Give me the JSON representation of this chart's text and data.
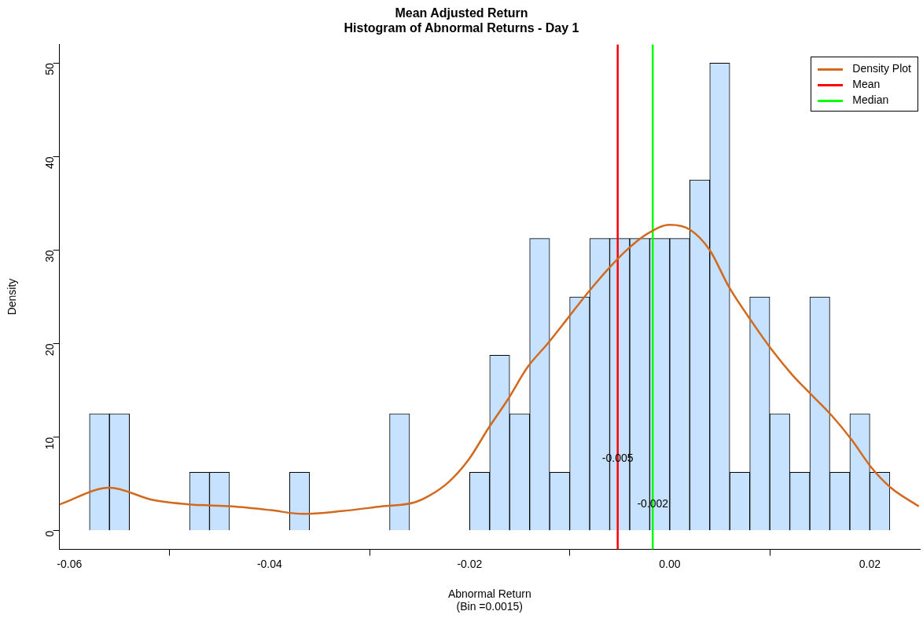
{
  "chart_data": {
    "type": "histogram",
    "title": "Mean Adjusted Return",
    "subtitle": "Histogram of Abnormal Returns - Day 1",
    "xlabel": "Abnormal Return\n(Bin =0.0015)",
    "ylabel": "Density",
    "bins": [
      -0.058,
      -0.056,
      -0.054,
      -0.052,
      -0.05,
      -0.048,
      -0.046,
      -0.044,
      -0.042,
      -0.04,
      -0.038,
      -0.036,
      -0.034,
      -0.032,
      -0.03,
      -0.028,
      -0.026,
      -0.024,
      -0.022,
      -0.02,
      -0.018,
      -0.016,
      -0.014,
      -0.012,
      -0.01,
      -0.008,
      -0.006,
      -0.004,
      -0.002,
      0,
      0.002,
      0.004,
      0.006,
      0.008,
      0.01,
      0.012,
      0.014,
      0.016,
      0.018,
      0.02,
      0.022
    ],
    "values": [
      12.5,
      12.5,
      0,
      0,
      0,
      6.25,
      6.25,
      0,
      0,
      0,
      6.25,
      0,
      0,
      0,
      0,
      12.5,
      0,
      0,
      0,
      6.25,
      18.75,
      12.5,
      31.25,
      6.25,
      25,
      31.25,
      31.25,
      31.25,
      31.25,
      31.25,
      37.5,
      50,
      6.25,
      25,
      12.5,
      6.25,
      25,
      6.25,
      12.5,
      6.25
    ],
    "color": "#c6e2ff",
    "series": [
      {
        "type": "line",
        "name": "Density Plot",
        "color": "#d2691e",
        "x": [
          -0.061,
          -0.056,
          -0.0517,
          -0.0478,
          -0.0438,
          -0.0399,
          -0.0367,
          -0.0328,
          -0.0288,
          -0.0256,
          -0.0241,
          -0.0221,
          -0.0201,
          -0.0181,
          -0.0162,
          -0.0142,
          -0.0122,
          -0.0102,
          -0.0083,
          -0.0063,
          -0.0043,
          -0.0023,
          0,
          0.002,
          0.004,
          0.0059,
          0.0083,
          0.0103,
          0.0123,
          0.0142,
          0.0162,
          0.0182,
          0.0202,
          0.0221,
          0.0249
        ],
        "values": [
          2.8,
          4.6,
          3.3,
          2.8,
          2.6,
          2.2,
          1.8,
          2.1,
          2.6,
          3.0,
          3.7,
          5.2,
          7.6,
          11,
          14,
          17.5,
          20,
          22.7,
          25.3,
          27.8,
          30,
          31.7,
          32.7,
          32.2,
          30,
          26.1,
          22.2,
          19.2,
          16.6,
          14.5,
          12.3,
          9.7,
          6.7,
          4.6,
          2.6
        ]
      },
      {
        "type": "line",
        "name": "Mean",
        "color": "#ff0000",
        "x": [
          -0.0052,
          -0.0052
        ],
        "values": [
          -2,
          52
        ]
      },
      {
        "type": "line",
        "name": "Median",
        "color": "#00ff00",
        "x": [
          -0.0017,
          -0.0017
        ],
        "values": [
          -2,
          52
        ]
      }
    ],
    "annotations": [
      "-0.005",
      "-0.002"
    ],
    "xlim": [
      -0.061,
      0.025
    ],
    "ylim": [
      -2,
      52
    ],
    "xticks": [
      -0.06,
      -0.04,
      -0.02,
      {
        "value": 0,
        "label": "0.00"
      },
      0.02
    ],
    "yticks": [
      0,
      10,
      20,
      30,
      40,
      50
    ],
    "grid": false,
    "legend": "top right"
  }
}
